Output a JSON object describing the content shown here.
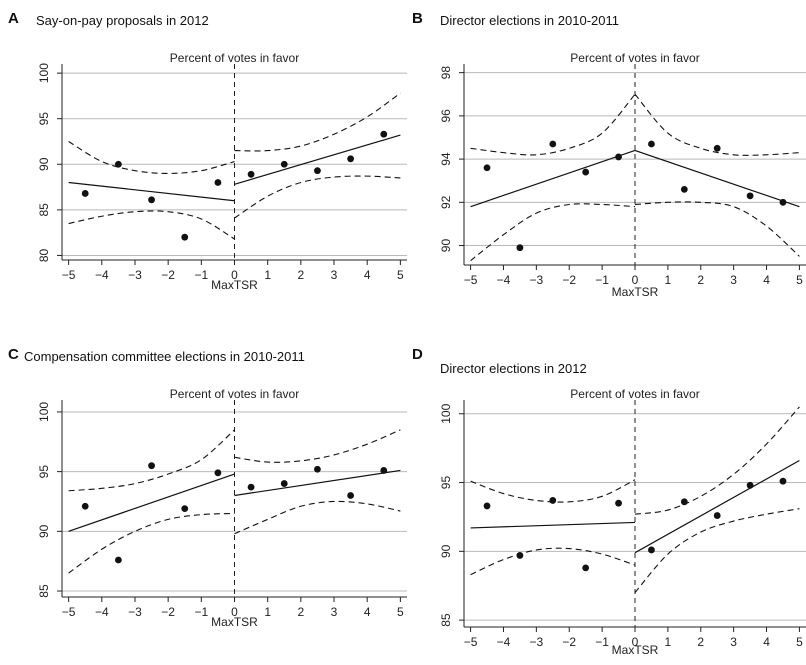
{
  "panels": [
    {
      "letter": "A",
      "title": "Say-on-pay proposals in 2012",
      "plot_label": "Percent of votes in favor",
      "xlabel": "MaxTSR"
    },
    {
      "letter": "B",
      "title": "Director elections in 2010-2011",
      "plot_label": "Percent of votes in favor",
      "xlabel": "MaxTSR"
    },
    {
      "letter": "C",
      "title": "Compensation committee elections in 2010-2011",
      "plot_label": "Percent of votes in favor",
      "xlabel": "MaxTSR"
    },
    {
      "letter": "D",
      "title": "Director elections in 2012",
      "plot_label": "Percent of votes in favor",
      "xlabel": "MaxTSR"
    }
  ],
  "chart_data": [
    {
      "type": "scatter",
      "title": "Say-on-pay proposals in 2012",
      "xlabel": "MaxTSR",
      "ylabel": "Percent of votes in favor",
      "xlim": [
        -5.2,
        5.2
      ],
      "ylim": [
        79.5,
        101
      ],
      "xticks": [
        -5,
        -4,
        -3,
        -2,
        -1,
        0,
        1,
        2,
        3,
        4,
        5
      ],
      "yticks": [
        80,
        85,
        90,
        95,
        100
      ],
      "grid": "horizontal",
      "cutoff": 0,
      "points": [
        [
          -4.5,
          86.8
        ],
        [
          -3.5,
          90.0
        ],
        [
          -2.5,
          86.1
        ],
        [
          -1.5,
          82.0
        ],
        [
          -0.5,
          88.0
        ],
        [
          0.5,
          88.9
        ],
        [
          1.5,
          90.0
        ],
        [
          2.5,
          89.3
        ],
        [
          3.5,
          90.6
        ],
        [
          4.5,
          93.3
        ]
      ],
      "fit_left": [
        [
          -5,
          88.0
        ],
        [
          0,
          86.0
        ]
      ],
      "fit_right": [
        [
          0,
          87.8
        ],
        [
          5,
          93.2
        ]
      ],
      "ci_left_upper": [
        [
          -5,
          92.5
        ],
        [
          -4,
          90.3
        ],
        [
          -3,
          89.3
        ],
        [
          -2,
          89.0
        ],
        [
          -1,
          89.3
        ],
        [
          0,
          90.3
        ]
      ],
      "ci_left_lower": [
        [
          -5,
          83.5
        ],
        [
          -4,
          84.3
        ],
        [
          -3,
          84.8
        ],
        [
          -2,
          84.8
        ],
        [
          -1,
          84.0
        ],
        [
          0,
          81.8
        ]
      ],
      "ci_right_upper": [
        [
          0,
          91.5
        ],
        [
          1,
          91.5
        ],
        [
          2,
          92.0
        ],
        [
          3,
          93.3
        ],
        [
          4,
          95.2
        ],
        [
          5,
          97.8
        ]
      ],
      "ci_right_lower": [
        [
          0,
          84.1
        ],
        [
          1,
          86.5
        ],
        [
          2,
          88.0
        ],
        [
          3,
          88.6
        ],
        [
          4,
          88.7
        ],
        [
          5,
          88.5
        ]
      ]
    },
    {
      "type": "scatter",
      "title": "Director elections in 2010-2011",
      "xlabel": "MaxTSR",
      "ylabel": "Percent of votes in favor",
      "xlim": [
        -5.2,
        5.2
      ],
      "ylim": [
        89.1,
        98.4
      ],
      "xticks": [
        -5,
        -4,
        -3,
        -2,
        -1,
        0,
        1,
        2,
        3,
        4,
        5
      ],
      "yticks": [
        90,
        92,
        94,
        96,
        98
      ],
      "grid": "horizontal",
      "cutoff": 0,
      "points": [
        [
          -4.5,
          93.6
        ],
        [
          -3.5,
          89.9
        ],
        [
          -2.5,
          94.7
        ],
        [
          -1.5,
          93.4
        ],
        [
          -0.5,
          94.1
        ],
        [
          0.5,
          94.7
        ],
        [
          1.5,
          92.6
        ],
        [
          2.5,
          94.5
        ],
        [
          3.5,
          92.3
        ],
        [
          4.5,
          92.0
        ]
      ],
      "fit_left": [
        [
          -5,
          91.8
        ],
        [
          0,
          94.4
        ]
      ],
      "fit_right": [
        [
          0,
          94.4
        ],
        [
          5,
          91.8
        ]
      ],
      "ci_left_upper": [
        [
          -5,
          94.5
        ],
        [
          -4,
          94.3
        ],
        [
          -3,
          94.2
        ],
        [
          -2,
          94.5
        ],
        [
          -1,
          95.2
        ],
        [
          0,
          97.0
        ]
      ],
      "ci_left_lower": [
        [
          -5,
          89.3
        ],
        [
          -4,
          90.5
        ],
        [
          -3,
          91.5
        ],
        [
          -2,
          91.9
        ],
        [
          -1,
          91.9
        ],
        [
          0,
          91.8
        ]
      ],
      "ci_right_upper": [
        [
          0,
          97.0
        ],
        [
          1,
          95.2
        ],
        [
          2,
          94.5
        ],
        [
          3,
          94.2
        ],
        [
          4,
          94.2
        ],
        [
          5,
          94.3
        ]
      ],
      "ci_right_lower": [
        [
          0,
          91.9
        ],
        [
          1,
          92.0
        ],
        [
          2,
          92.0
        ],
        [
          3,
          91.8
        ],
        [
          4,
          90.9
        ],
        [
          5,
          89.5
        ]
      ]
    },
    {
      "type": "scatter",
      "title": "Compensation committee elections in 2010-2011",
      "xlabel": "MaxTSR",
      "ylabel": "Percent of votes in favor",
      "xlim": [
        -5.2,
        5.2
      ],
      "ylim": [
        84.5,
        101
      ],
      "xticks": [
        -5,
        -4,
        -3,
        -2,
        -1,
        0,
        1,
        2,
        3,
        4,
        5
      ],
      "yticks": [
        85,
        90,
        95,
        100
      ],
      "grid": "horizontal",
      "cutoff": 0,
      "points": [
        [
          -4.5,
          92.1
        ],
        [
          -3.5,
          87.6
        ],
        [
          -2.5,
          95.5
        ],
        [
          -1.5,
          91.9
        ],
        [
          -0.5,
          94.9
        ],
        [
          0.5,
          93.7
        ],
        [
          1.5,
          94.0
        ],
        [
          2.5,
          95.2
        ],
        [
          3.5,
          93.0
        ],
        [
          4.5,
          95.1
        ]
      ],
      "fit_left": [
        [
          -5,
          90.0
        ],
        [
          0,
          94.8
        ]
      ],
      "fit_right": [
        [
          0,
          93.0
        ],
        [
          5,
          95.1
        ]
      ],
      "ci_left_upper": [
        [
          -5,
          93.4
        ],
        [
          -4,
          93.6
        ],
        [
          -3,
          94.0
        ],
        [
          -2,
          94.8
        ],
        [
          -1,
          96.0
        ],
        [
          0,
          98.5
        ]
      ],
      "ci_left_lower": [
        [
          -5,
          86.5
        ],
        [
          -4,
          88.5
        ],
        [
          -3,
          90.0
        ],
        [
          -2,
          91.0
        ],
        [
          -1,
          91.4
        ],
        [
          0,
          91.5
        ]
      ],
      "ci_right_upper": [
        [
          0,
          96.2
        ],
        [
          1,
          95.8
        ],
        [
          2,
          95.9
        ],
        [
          3,
          96.4
        ],
        [
          4,
          97.3
        ],
        [
          5,
          98.5
        ]
      ],
      "ci_right_lower": [
        [
          0,
          89.8
        ],
        [
          1,
          91.0
        ],
        [
          2,
          92.1
        ],
        [
          3,
          92.5
        ],
        [
          4,
          92.3
        ],
        [
          5,
          91.7
        ]
      ]
    },
    {
      "type": "scatter",
      "title": "Director elections in 2012",
      "xlabel": "MaxTSR",
      "ylabel": "Percent of votes in favor",
      "xlim": [
        -5.2,
        5.2
      ],
      "ylim": [
        84.5,
        101
      ],
      "xticks": [
        -5,
        -4,
        -3,
        -2,
        -1,
        0,
        1,
        2,
        3,
        4,
        5
      ],
      "yticks": [
        85,
        90,
        95,
        100
      ],
      "grid": "horizontal",
      "cutoff": 0,
      "points": [
        [
          -4.5,
          93.3
        ],
        [
          -3.5,
          89.7
        ],
        [
          -2.5,
          93.7
        ],
        [
          -1.5,
          88.8
        ],
        [
          -0.5,
          93.5
        ],
        [
          0.5,
          90.1
        ],
        [
          1.5,
          93.6
        ],
        [
          2.5,
          92.6
        ],
        [
          3.5,
          94.8
        ],
        [
          4.5,
          95.1
        ]
      ],
      "fit_left": [
        [
          -5,
          91.7
        ],
        [
          0,
          92.1
        ]
      ],
      "fit_right": [
        [
          0,
          89.9
        ],
        [
          5,
          96.6
        ]
      ],
      "ci_left_upper": [
        [
          -5,
          95.1
        ],
        [
          -4,
          94.2
        ],
        [
          -3,
          93.7
        ],
        [
          -2,
          93.6
        ],
        [
          -1,
          94.0
        ],
        [
          0,
          95.2
        ]
      ],
      "ci_left_lower": [
        [
          -5,
          88.3
        ],
        [
          -4,
          89.4
        ],
        [
          -3,
          90.1
        ],
        [
          -2,
          90.2
        ],
        [
          -1,
          89.8
        ],
        [
          0,
          89.0
        ]
      ],
      "ci_right_upper": [
        [
          0,
          92.7
        ],
        [
          1,
          93.0
        ],
        [
          2,
          94.0
        ],
        [
          3,
          95.6
        ],
        [
          4,
          97.8
        ],
        [
          5,
          100.5
        ]
      ],
      "ci_right_lower": [
        [
          0,
          87.0
        ],
        [
          1,
          89.8
        ],
        [
          2,
          91.4
        ],
        [
          3,
          92.2
        ],
        [
          4,
          92.7
        ],
        [
          5,
          93.1
        ]
      ]
    }
  ]
}
